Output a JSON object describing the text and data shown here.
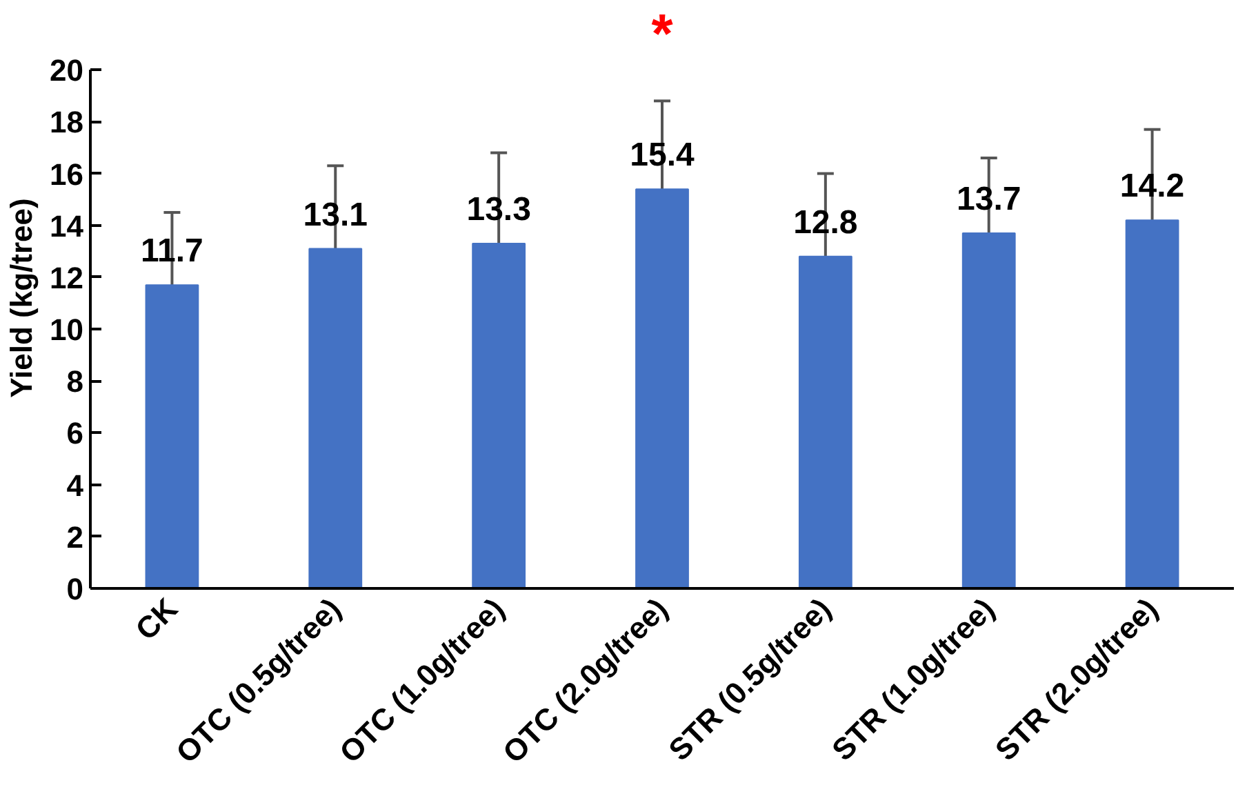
{
  "chart_data": {
    "type": "bar",
    "ylabel": "Yield (kg/tree)",
    "categories": [
      "CK",
      "OTC (0.5g/tree)",
      "OTC (1.0g/tree)",
      "OTC (2.0g/tree)",
      "STR (0.5g/tree)",
      "STR (1.0g/tree)",
      "STR (2.0g/tree)"
    ],
    "values": [
      11.7,
      13.1,
      13.3,
      15.4,
      12.8,
      13.7,
      14.2
    ],
    "errors": [
      2.8,
      3.2,
      3.5,
      3.4,
      3.2,
      2.9,
      3.5
    ],
    "color": "#4472c4",
    "ylim": [
      0,
      20
    ],
    "yticks": [
      0,
      2,
      4,
      6,
      8,
      10,
      12,
      14,
      16,
      18,
      20
    ],
    "data_labels": true,
    "grid": false,
    "annotations": [
      {
        "text": "*",
        "x": "OTC (2.0g/tree)",
        "y": 18.8
      }
    ]
  }
}
